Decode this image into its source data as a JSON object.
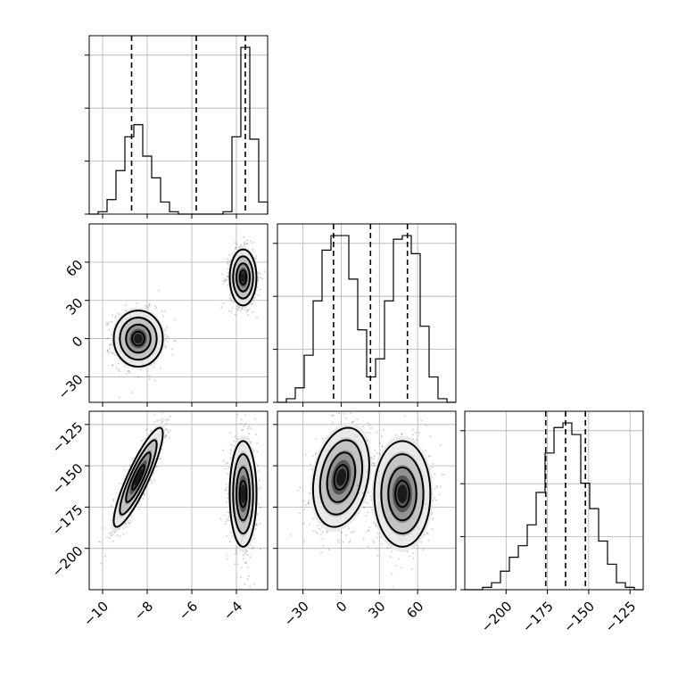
{
  "chart_data": {
    "type": "corner",
    "parameters": [
      {
        "ticks": [
          -10,
          -8,
          -6,
          -4
        ],
        "range": [
          -10.6,
          -2.6
        ],
        "quantiles": [
          -8.7,
          -5.8,
          -3.6
        ]
      },
      {
        "ticks": [
          -30,
          0,
          30,
          60
        ],
        "range": [
          -50,
          90
        ],
        "quantiles": [
          -6,
          23,
          52
        ]
      },
      {
        "ticks": [
          -200,
          -175,
          -150,
          -125
        ],
        "range": [
          -225,
          -117
        ],
        "quantiles": [
          -176,
          -164,
          -152
        ]
      }
    ],
    "tick_labels": {
      "p0": [
        "−10",
        "−8",
        "−6",
        "−4"
      ],
      "p1": [
        "−30",
        "0",
        "30",
        "60"
      ],
      "p2": [
        "−200",
        "−175",
        "−150",
        "−125"
      ]
    },
    "histograms": [
      {
        "param": 0,
        "bin_edges": [
          -10.6,
          -10.2,
          -9.8,
          -9.4,
          -9.0,
          -8.6,
          -8.2,
          -7.8,
          -7.4,
          -7.0,
          -6.6,
          -6.2,
          -5.8,
          -5.4,
          -5.0,
          -4.6,
          -4.2,
          -3.8,
          -3.4,
          -3.0,
          -2.6
        ],
        "counts": [
          0,
          1,
          6,
          18,
          32,
          37,
          24,
          15,
          5,
          1,
          0,
          0,
          0,
          0,
          0,
          1,
          32,
          69,
          31,
          5
        ]
      },
      {
        "param": 1,
        "bin_edges": [
          -50,
          -43,
          -36,
          -29,
          -22,
          -15,
          -8,
          -1,
          6,
          13,
          20,
          27,
          34,
          41,
          48,
          55,
          62,
          69,
          76,
          83,
          90
        ],
        "counts": [
          0,
          1,
          4,
          13,
          28,
          42,
          46,
          46,
          34,
          20,
          7,
          12,
          28,
          45,
          46,
          41,
          21,
          7,
          1,
          0
        ]
      },
      {
        "param": 2,
        "bin_edges": [
          -225,
          -219.6,
          -214.2,
          -208.8,
          -203.4,
          -198,
          -192.6,
          -187.2,
          -181.8,
          -176.4,
          -171,
          -165.6,
          -160.2,
          -154.8,
          -149.4,
          -144,
          -138.6,
          -133.2,
          -127.8,
          -122.4,
          -117
        ],
        "counts": [
          0,
          0,
          1,
          3,
          8,
          14,
          19,
          28,
          42,
          59,
          70,
          72,
          67,
          46,
          35,
          21,
          11,
          3,
          1,
          0
        ]
      }
    ],
    "clusters": [
      {
        "means": [
          -8.4,
          0,
          -157
        ],
        "stds": [
          0.55,
          11,
          15
        ],
        "correlations": {
          "p0_p1": 0.0,
          "p0_p2": 0.88,
          "p1_p2": 0.25
        }
      },
      {
        "means": [
          -3.7,
          48,
          -167
        ],
        "stds": [
          0.3,
          11,
          16
        ],
        "correlations": {
          "p0_p1": 0.0,
          "p0_p2": 0.0,
          "p1_p2": 0.0
        }
      }
    ],
    "grid": true,
    "contour_levels_sigma": [
      0.5,
      1.0,
      1.5,
      2.0
    ]
  }
}
